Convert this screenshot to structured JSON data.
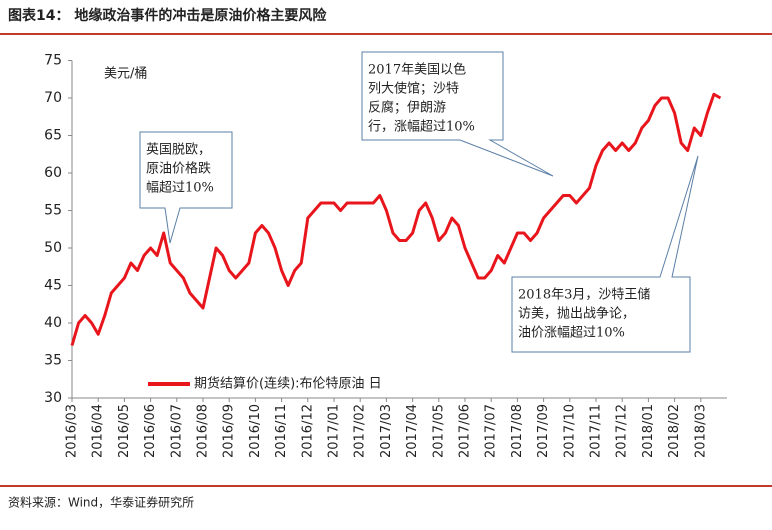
{
  "chart_data": {
    "type": "line",
    "title": "图表14：  地缘政治事件的冲击是原油价格主要风险",
    "y_label": "美元/桶",
    "source": "资料来源：Wind，华泰证券研究所",
    "categories": [
      "2016/03",
      null,
      null,
      null,
      "2016/04",
      null,
      null,
      null,
      "2016/05",
      null,
      null,
      null,
      "2016/06",
      null,
      null,
      null,
      "2016/07",
      null,
      null,
      null,
      "2016/08",
      null,
      null,
      null,
      "2016/09",
      null,
      null,
      null,
      "2016/10",
      null,
      null,
      null,
      "2016/11",
      null,
      null,
      null,
      "2016/12",
      null,
      null,
      null,
      "2017/01",
      null,
      null,
      null,
      "2017/02",
      null,
      null,
      null,
      "2017/03",
      null,
      null,
      null,
      "2017/04",
      null,
      null,
      null,
      "2017/05",
      null,
      null,
      null,
      "2017/06",
      null,
      null,
      null,
      "2017/07",
      null,
      null,
      null,
      "2017/08",
      null,
      null,
      null,
      "2017/09",
      null,
      null,
      null,
      "2017/10",
      null,
      null,
      null,
      "2017/11",
      null,
      null,
      null,
      "2017/12",
      null,
      null,
      null,
      "2018/01",
      null,
      null,
      null,
      "2018/02",
      null,
      null,
      null,
      "2018/03",
      null,
      null,
      null
    ],
    "series": [
      {
        "name": "期货结算价(连续):布伦特原油  日",
        "color": "#e8161c",
        "values": [
          37,
          40,
          41,
          40,
          38.5,
          41,
          44,
          45,
          46,
          48,
          47,
          49,
          50,
          49,
          52,
          48,
          47,
          46,
          44,
          43,
          42,
          46,
          50,
          49,
          47,
          46,
          47,
          48,
          52,
          53,
          52,
          50,
          47,
          45,
          47,
          48,
          54,
          55,
          56,
          56,
          56,
          55,
          56,
          56,
          56,
          56,
          56,
          57,
          55,
          52,
          51,
          51,
          52,
          55,
          56,
          54,
          51,
          52,
          54,
          53,
          50,
          48,
          46,
          46,
          47,
          49,
          48,
          50,
          52,
          52,
          51,
          52,
          54,
          55,
          56,
          57,
          57,
          56,
          57,
          58,
          61,
          63,
          64,
          63,
          64,
          63,
          64,
          66,
          67,
          69,
          70,
          70,
          68,
          64,
          63,
          66,
          65,
          68,
          70.5,
          70
        ]
      }
    ],
    "ylim": [
      30,
      75
    ],
    "yticks": [
      30,
      35,
      40,
      45,
      50,
      55,
      60,
      65,
      70,
      75
    ],
    "annotations": [
      {
        "lines": [
          "英国脱欧，",
          "原油价格跌",
          "幅超过10%"
        ]
      },
      {
        "lines": [
          "2017年美国以色",
          "列大使馆；沙特",
          "反腐；伊朗游",
          "行，涨幅超过10%"
        ]
      },
      {
        "lines": [
          "2018年3月，沙特王储",
          "访美，抛出战争论，",
          "油价涨幅超过10%"
        ]
      }
    ]
  }
}
